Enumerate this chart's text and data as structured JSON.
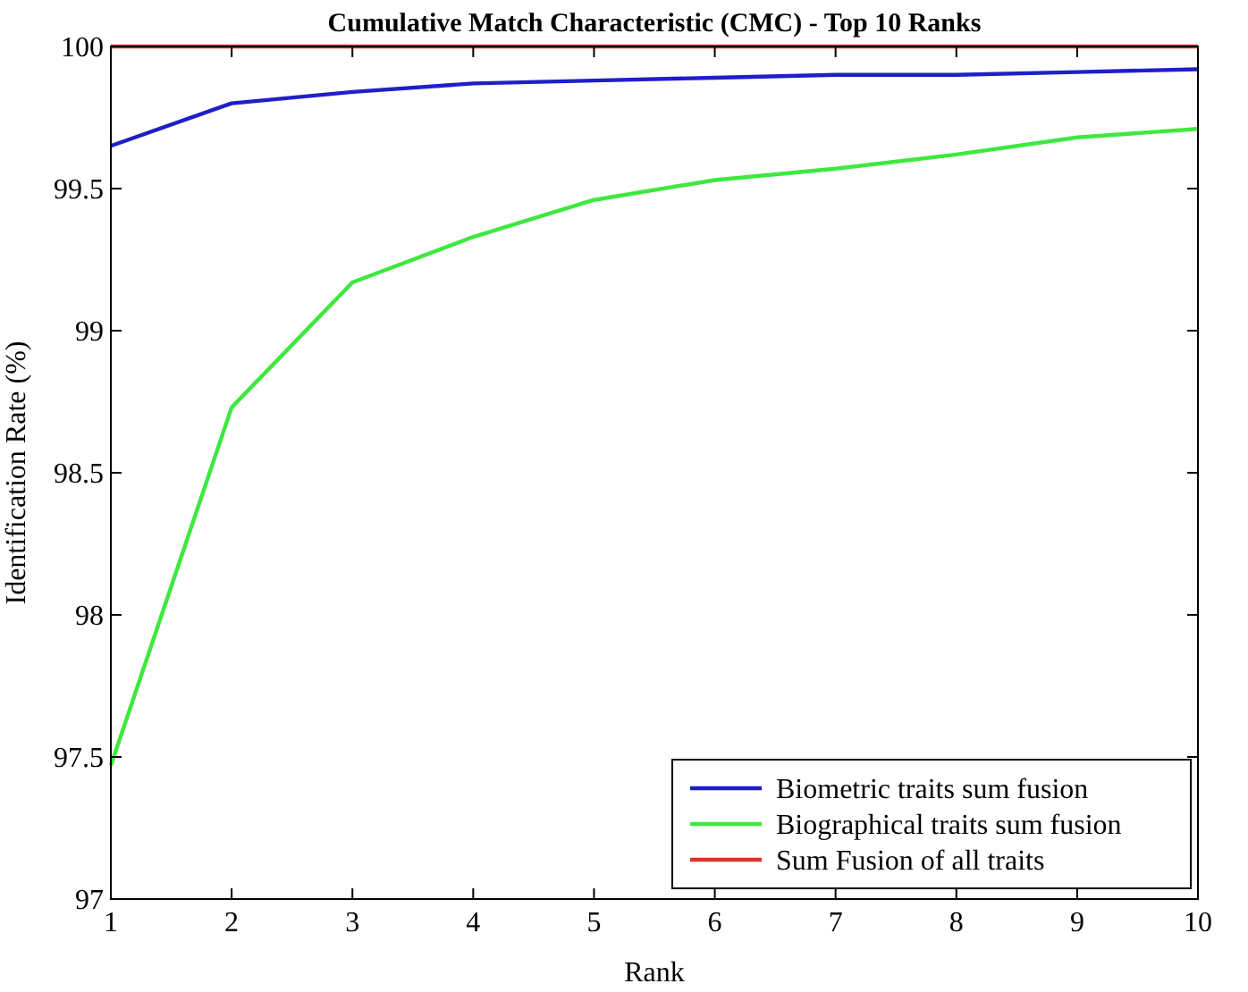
{
  "chart_data": {
    "type": "line",
    "title": "Cumulative Match Characteristic (CMC) - Top 10 Ranks",
    "xlabel": "Rank",
    "ylabel": "Identification Rate (%)",
    "x": [
      1,
      2,
      3,
      4,
      5,
      6,
      7,
      8,
      9,
      10
    ],
    "series": [
      {
        "name": "Biometric traits sum fusion",
        "color": "#1f1fc8",
        "values": [
          99.65,
          99.8,
          99.84,
          99.87,
          99.88,
          99.89,
          99.9,
          99.9,
          99.91,
          99.92
        ]
      },
      {
        "name": "Biographical traits sum fusion",
        "color": "#3ee83e",
        "values": [
          97.47,
          98.73,
          99.17,
          99.33,
          99.46,
          99.53,
          99.57,
          99.62,
          99.68,
          99.71
        ]
      },
      {
        "name": "Sum Fusion of all traits",
        "color": "#e03030",
        "values": [
          100,
          100,
          100,
          100,
          100,
          100,
          100,
          100,
          100,
          100
        ]
      }
    ],
    "xlim": [
      1,
      10
    ],
    "xticks": [
      1,
      2,
      3,
      4,
      5,
      6,
      7,
      8,
      9,
      10
    ],
    "ylim": [
      97,
      100
    ],
    "yticks": [
      97,
      97.5,
      98,
      98.5,
      99,
      99.5,
      100
    ],
    "legend": "bottom right",
    "marker": "none",
    "line_style": "solid"
  }
}
